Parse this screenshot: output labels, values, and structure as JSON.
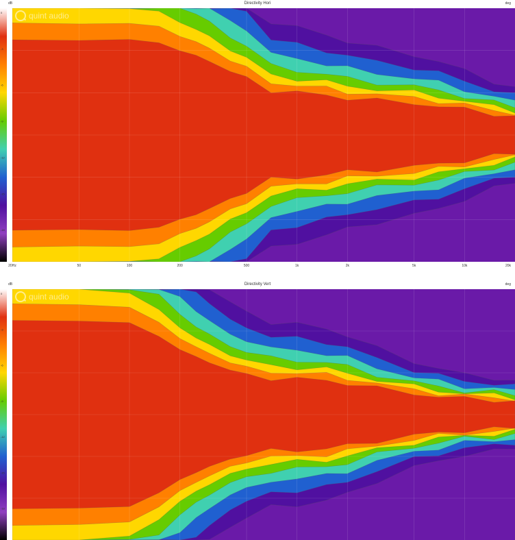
{
  "chart_data": [
    {
      "type": "heatmap",
      "title": "Directivity Hori",
      "unit_left": "dB",
      "unit_right": "deg",
      "x_ticks": [
        "20Hz",
        "50",
        "100",
        "200",
        "500",
        "1k",
        "2k",
        "5k",
        "10k",
        "20k"
      ],
      "x_scale": "log",
      "xlim": [
        20,
        20000
      ],
      "ylim": [
        -180,
        180
      ],
      "color_scale_labels": [
        "0",
        "-3",
        "-6",
        "-9",
        "-12",
        "-15",
        "-18"
      ],
      "colormap": [
        "#ffffff",
        "#e03010",
        "#ff8000",
        "#ffd700",
        "#66cc00",
        "#40d0b0",
        "#2060d0",
        "#5010a0",
        "#9040c0",
        "#000000"
      ],
      "beamwidth_curve": {
        "x": [
          20,
          50,
          100,
          150,
          200,
          250,
          300,
          400,
          500,
          700,
          1000,
          1500,
          2000,
          3000,
          5000,
          7000,
          10000,
          15000,
          20000
        ],
        "half_angle_deg": [
          180,
          180,
          180,
          175,
          160,
          150,
          140,
          120,
          110,
          85,
          80,
          75,
          70,
          65,
          60,
          55,
          48,
          40,
          35
        ]
      },
      "logo_text": "quint audio"
    },
    {
      "type": "heatmap",
      "title": "Directivity Vert",
      "unit_left": "dB",
      "unit_right": "deg",
      "x_ticks": [],
      "x_scale": "log",
      "xlim": [
        20,
        20000
      ],
      "ylim": [
        -180,
        180
      ],
      "color_scale_labels": [
        "0",
        "-3",
        "-6",
        "-9",
        "-12",
        "-15",
        "-18"
      ],
      "colormap": [
        "#ffffff",
        "#e03010",
        "#ff8000",
        "#ffd700",
        "#66cc00",
        "#40d0b0",
        "#2060d0",
        "#5010a0",
        "#9040c0",
        "#000000"
      ],
      "beamwidth_curve": {
        "x": [
          20,
          50,
          100,
          150,
          200,
          250,
          300,
          400,
          500,
          700,
          1000,
          1500,
          2000,
          3000,
          5000,
          7000,
          10000,
          15000,
          20000
        ],
        "half_angle_deg": [
          180,
          180,
          175,
          150,
          125,
          110,
          100,
          85,
          78,
          70,
          68,
          65,
          60,
          50,
          40,
          35,
          30,
          28,
          25
        ]
      },
      "logo_text": "quint audio"
    }
  ]
}
